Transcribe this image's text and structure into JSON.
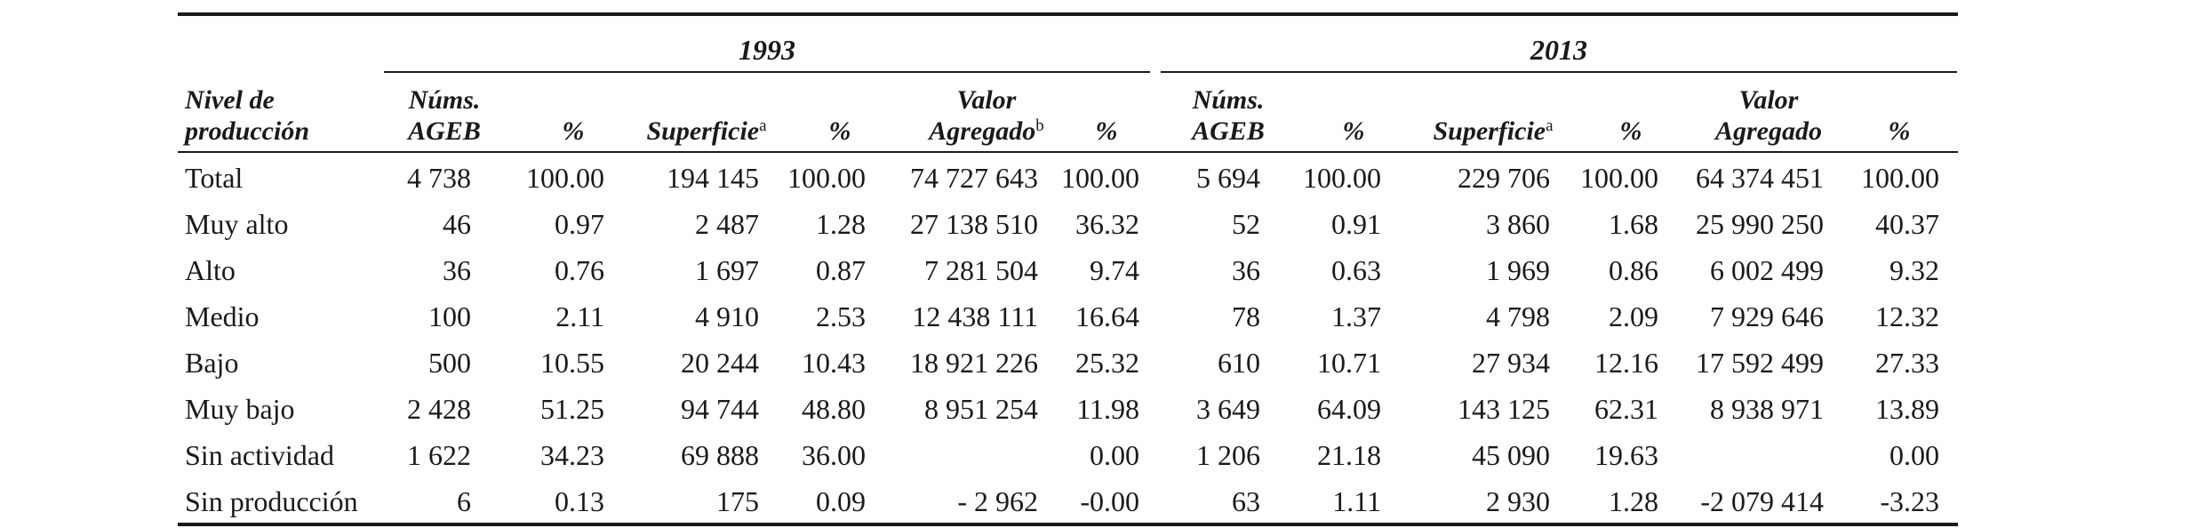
{
  "table": {
    "years": [
      "1993",
      "2013"
    ],
    "header": {
      "nivel": [
        "Nivel de",
        "producción"
      ],
      "nums": [
        "Núms.",
        "AGEB"
      ],
      "pct": "%",
      "superficie": "Superficie",
      "superficie_sup": "a",
      "valor": "Valor",
      "agregado": "Agregado",
      "agregado_sup_1993": "b"
    },
    "rows": [
      {
        "label": "Total",
        "c": [
          "4 738",
          "100.00",
          "194 145",
          "100.00",
          "74 727 643",
          "100.00",
          "5 694",
          "100.00",
          "229 706",
          "100.00",
          "64 374 451",
          "100.00"
        ]
      },
      {
        "label": "Muy alto",
        "c": [
          "46",
          "0.97",
          "2 487",
          "1.28",
          "27 138 510",
          "36.32",
          "52",
          "0.91",
          "3 860",
          "1.68",
          "25 990 250",
          "40.37"
        ]
      },
      {
        "label": "Alto",
        "c": [
          "36",
          "0.76",
          "1 697",
          "0.87",
          "7 281 504",
          "9.74",
          "36",
          "0.63",
          "1 969",
          "0.86",
          "6 002 499",
          "9.32"
        ]
      },
      {
        "label": "Medio",
        "c": [
          "100",
          "2.11",
          "4 910",
          "2.53",
          "12 438 111",
          "16.64",
          "78",
          "1.37",
          "4 798",
          "2.09",
          "7 929 646",
          "12.32"
        ]
      },
      {
        "label": "Bajo",
        "c": [
          "500",
          "10.55",
          "20 244",
          "10.43",
          "18 921 226",
          "25.32",
          "610",
          "10.71",
          "27 934",
          "12.16",
          "17 592 499",
          "27.33"
        ]
      },
      {
        "label": "Muy bajo",
        "c": [
          "2 428",
          "51.25",
          "94 744",
          "48.80",
          "8 951 254",
          "11.98",
          "3 649",
          "64.09",
          "143 125",
          "62.31",
          "8 938 971",
          "13.89"
        ]
      },
      {
        "label": "Sin actividad",
        "c": [
          "1 622",
          "34.23",
          "69 888",
          "36.00",
          "",
          "0.00",
          "1 206",
          "21.18",
          "45 090",
          "19.63",
          "",
          "0.00"
        ]
      },
      {
        "label": "Sin producción",
        "c": [
          "6",
          "0.13",
          "175",
          "0.09",
          "- 2 962",
          "-0.00",
          "63",
          "1.11",
          "2 930",
          "1.28",
          "-2 079 414",
          "-3.23"
        ]
      }
    ]
  }
}
